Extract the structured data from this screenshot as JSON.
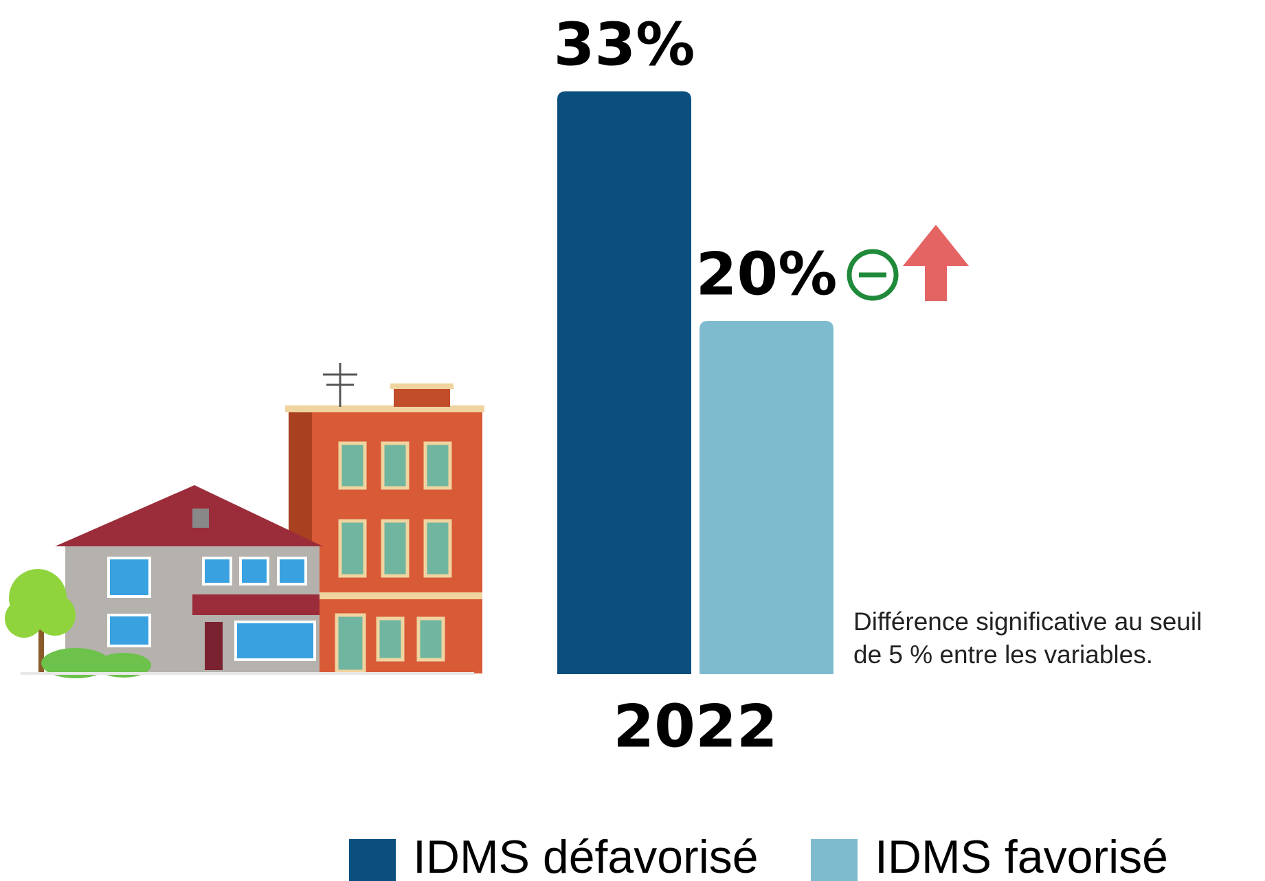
{
  "chart_data": {
    "type": "bar",
    "categories": [
      "2022"
    ],
    "series": [
      {
        "name": "IDMS défavorisé",
        "color": "#0b4f7e",
        "values": [
          33
        ],
        "value_labels": [
          "33%"
        ]
      },
      {
        "name": "IDMS favorisé",
        "color": "#7fbbcf",
        "values": [
          20
        ],
        "value_labels": [
          "20%"
        ]
      }
    ],
    "note": [
      "Différence significative au seuil",
      "de 5 % entre les variables."
    ]
  }
}
